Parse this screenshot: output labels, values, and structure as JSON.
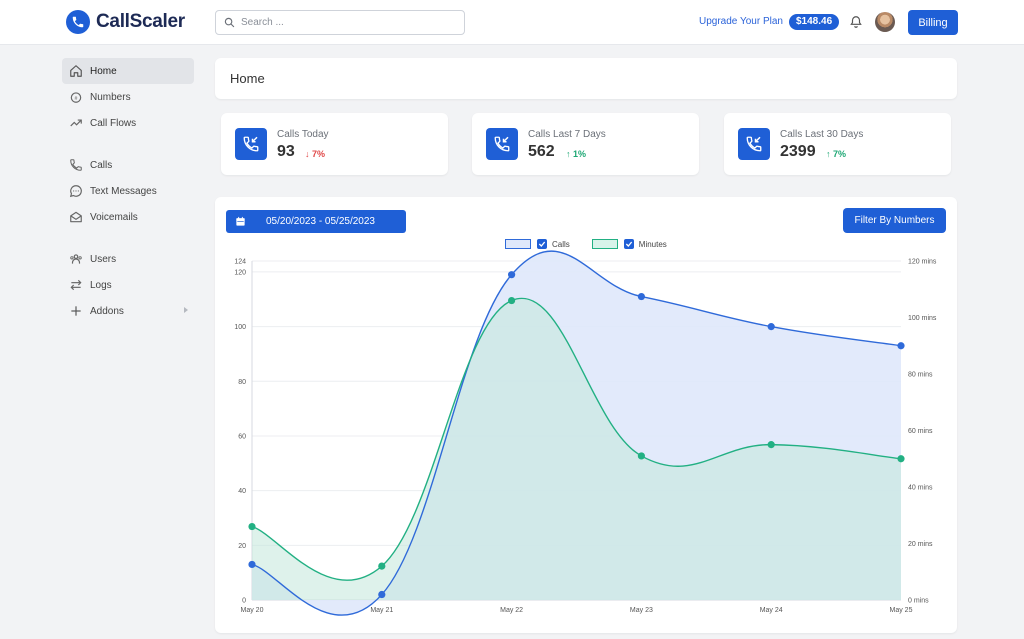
{
  "app": {
    "name": "CallScaler"
  },
  "header": {
    "search_placeholder": "Search ...",
    "upgrade_label": "Upgrade Your Plan",
    "balance": "$148.46",
    "billing_label": "Billing"
  },
  "sidebar": {
    "items": [
      {
        "label": "Home",
        "icon": "home-icon",
        "active": true
      },
      {
        "label": "Numbers",
        "icon": "numbers-icon"
      },
      {
        "label": "Call Flows",
        "icon": "trend-icon"
      },
      {
        "label": "Calls",
        "icon": "phone-icon"
      },
      {
        "label": "Text Messages",
        "icon": "chat-icon"
      },
      {
        "label": "Voicemails",
        "icon": "envelope-icon"
      },
      {
        "label": "Users",
        "icon": "users-icon"
      },
      {
        "label": "Logs",
        "icon": "swap-icon"
      },
      {
        "label": "Addons",
        "icon": "plus-icon"
      }
    ]
  },
  "page": {
    "title": "Home"
  },
  "stats": [
    {
      "label": "Calls Today",
      "value": "93",
      "trend": "7%",
      "direction": "down"
    },
    {
      "label": "Calls Last 7 Days",
      "value": "562",
      "trend": "1%",
      "direction": "up"
    },
    {
      "label": "Calls Last 30 Days",
      "value": "2399",
      "trend": "7%",
      "direction": "up"
    }
  ],
  "chart_panel": {
    "date_range": "05/20/2023 - 05/25/2023",
    "filter_label": "Filter By Numbers"
  },
  "colors": {
    "accent": "#1f5fd6",
    "calls_line": "#2f6ad9",
    "calls_fill": "#dfe8fb",
    "minutes_line": "#22b083",
    "minutes_fill": "#c3e8db",
    "trend_down": "#e04848",
    "trend_up": "#1ea774"
  },
  "chart_data": {
    "type": "area",
    "x": [
      "May 20",
      "May 21",
      "May 22",
      "May 23",
      "May 24",
      "May 25"
    ],
    "series": [
      {
        "name": "Calls",
        "axis": "left",
        "values": [
          13,
          2,
          119,
          111,
          100,
          93
        ]
      },
      {
        "name": "Minutes",
        "axis": "right",
        "values": [
          26,
          12,
          106,
          51,
          55,
          50
        ]
      }
    ],
    "y_left": {
      "ticks": [
        0,
        20,
        40,
        60,
        80,
        100,
        120,
        124
      ],
      "range": [
        0,
        124
      ]
    },
    "y_right": {
      "ticks": [
        "0 mins",
        "20 mins",
        "40 mins",
        "60 mins",
        "80 mins",
        "100 mins",
        "120 mins"
      ],
      "range": [
        0,
        120
      ]
    },
    "legend": "top-center",
    "grid": true
  }
}
